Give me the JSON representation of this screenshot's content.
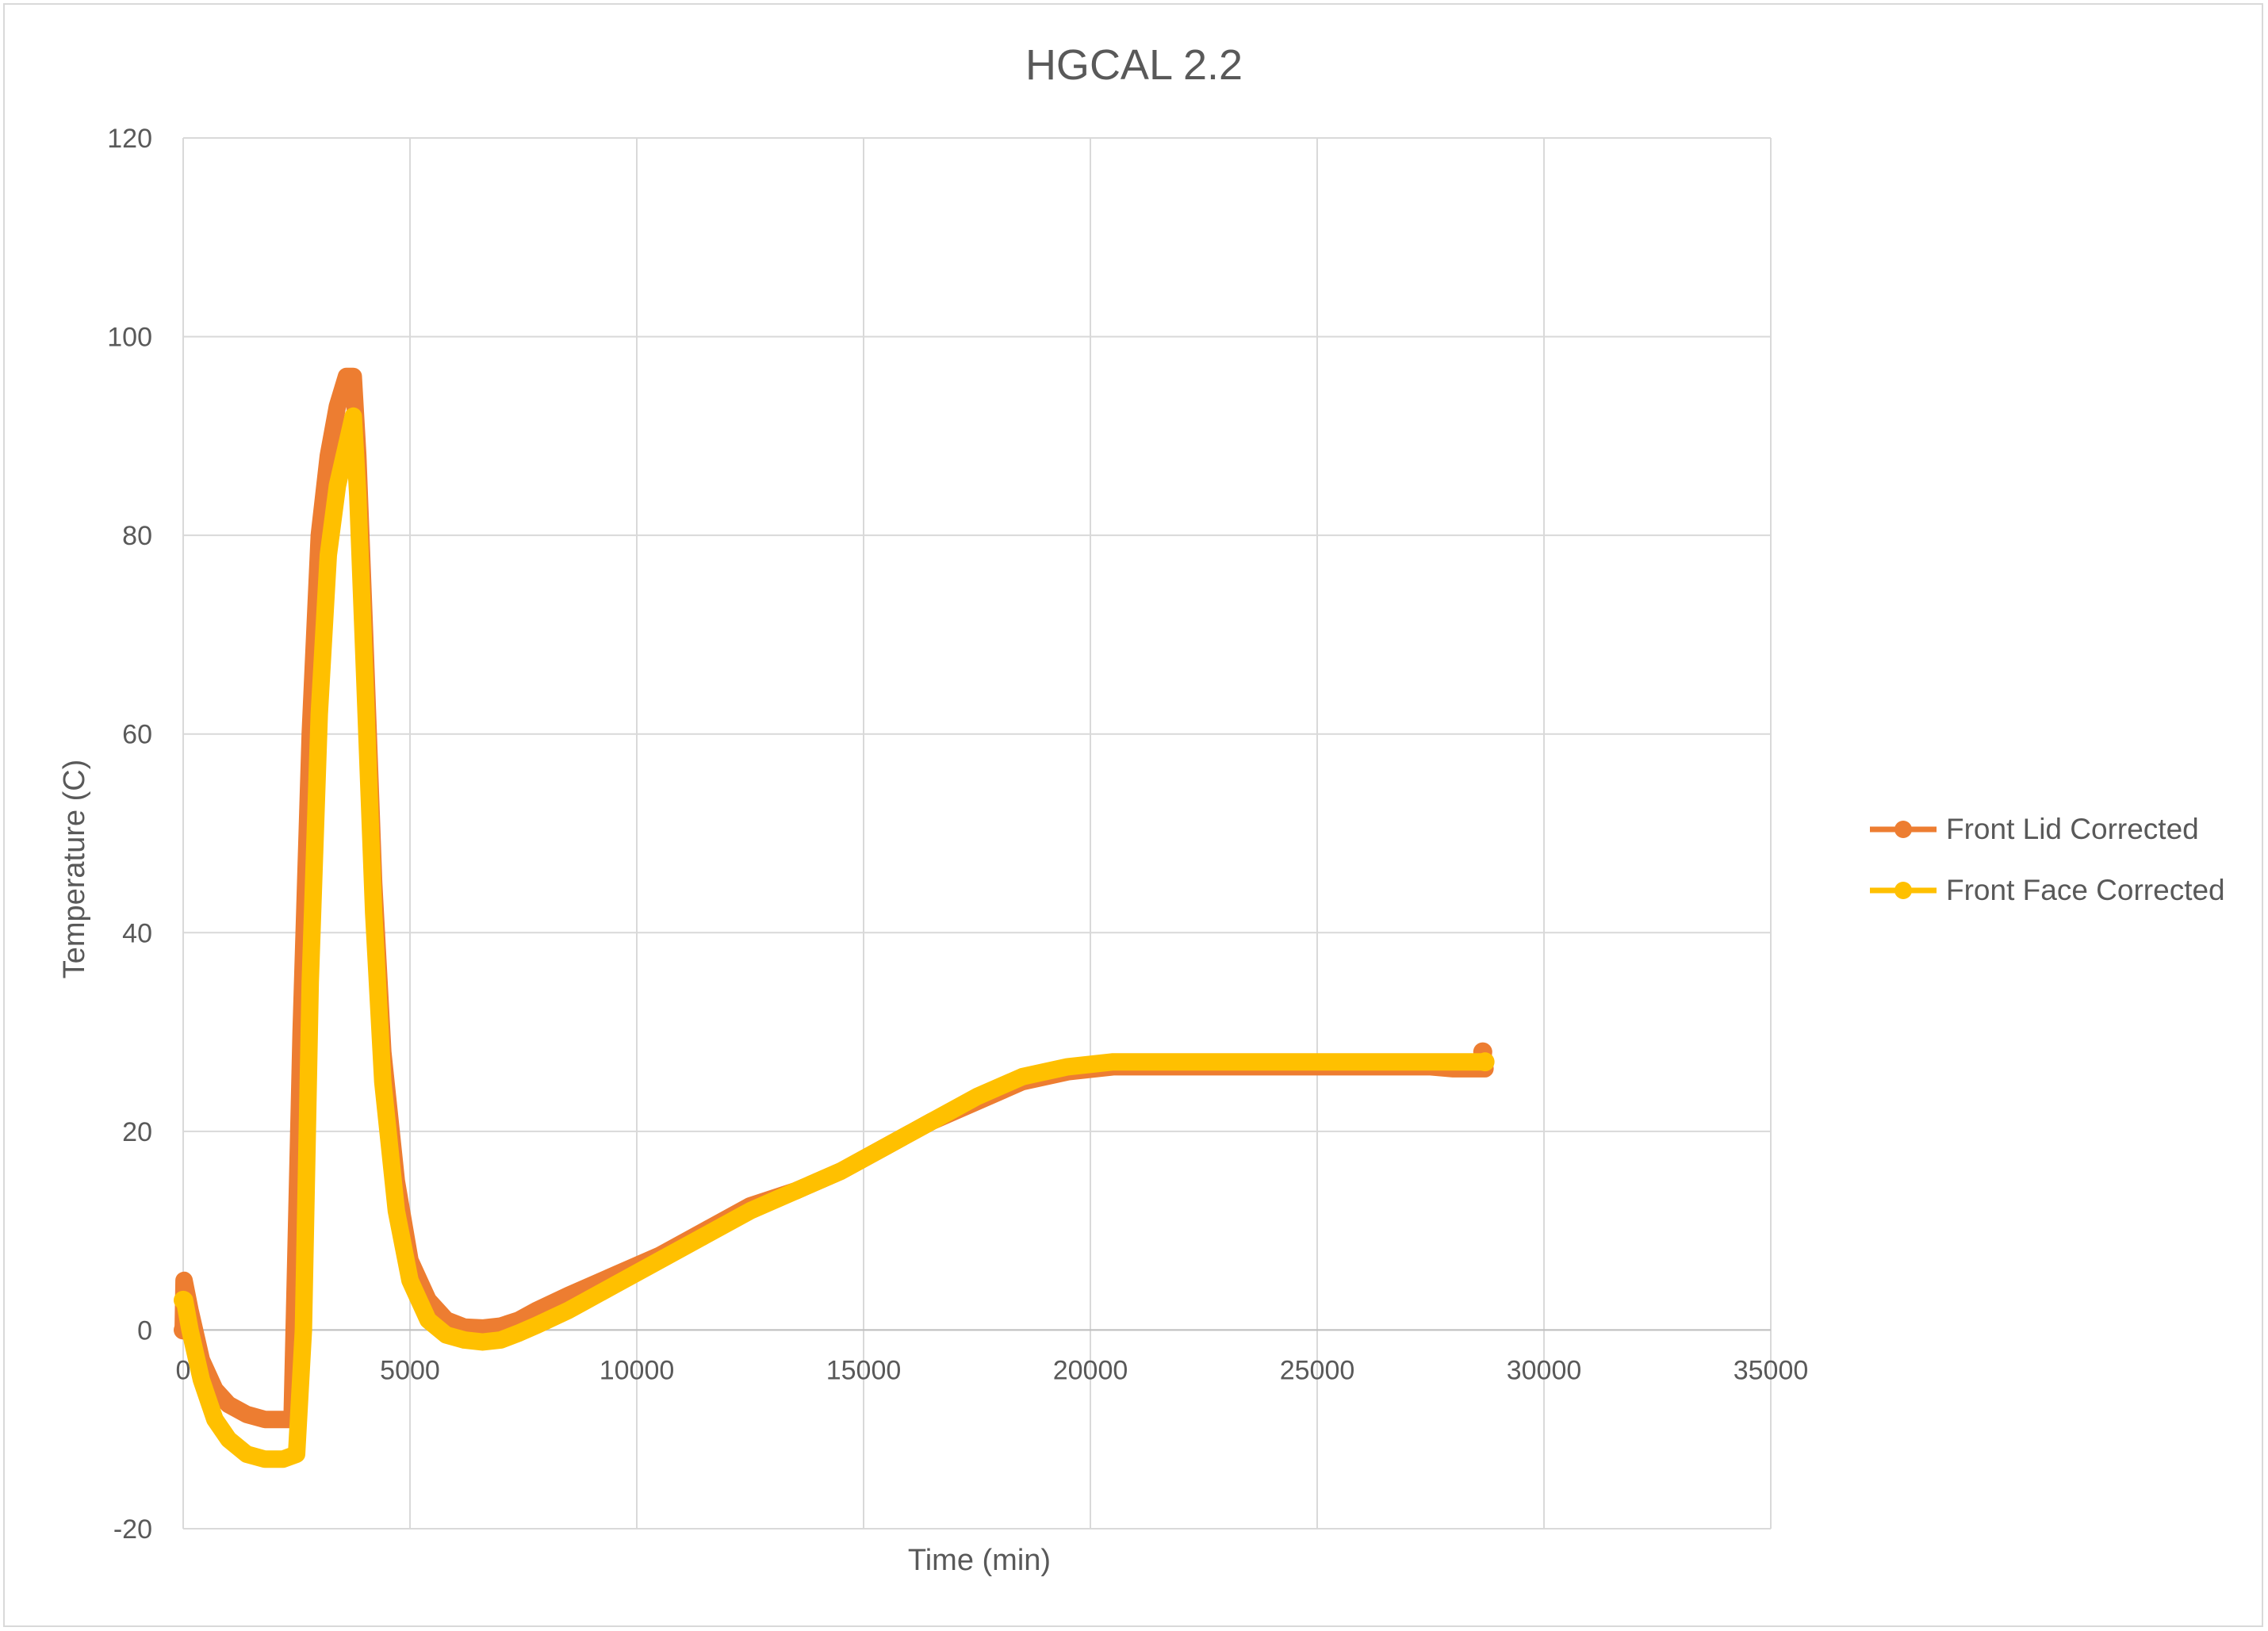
{
  "chart_data": {
    "type": "line",
    "title": "HGCAL 2.2",
    "xlabel": "Time (min)",
    "ylabel": "Temperature (C)",
    "xlim": [
      0,
      35000
    ],
    "ylim": [
      -20,
      120
    ],
    "x_ticks": [
      0,
      5000,
      10000,
      15000,
      20000,
      25000,
      30000,
      35000
    ],
    "y_ticks": [
      -20,
      0,
      20,
      40,
      60,
      80,
      100,
      120
    ],
    "grid": true,
    "legend_position": "right",
    "series": [
      {
        "name": "Front Lid Corrected",
        "color": "#ed7d31",
        "x": [
          0,
          20,
          150,
          400,
          700,
          1000,
          1400,
          1800,
          2200,
          2400,
          2600,
          2800,
          3000,
          3200,
          3400,
          3600,
          3750,
          3850,
          4000,
          4200,
          4400,
          4700,
          5000,
          5400,
          5800,
          6200,
          6600,
          7000,
          7400,
          7800,
          8500,
          9500,
          10500,
          11500,
          12500,
          13500,
          14500,
          15500,
          16500,
          17500,
          18500,
          19500,
          20500,
          21500,
          22500,
          23500,
          24500,
          25500,
          26500,
          27500,
          28000,
          28500,
          28700,
          28650
        ],
        "values": [
          0,
          5,
          2,
          -3,
          -6,
          -7.5,
          -8.5,
          -9,
          -9,
          -9,
          30,
          60,
          80,
          88,
          93,
          96,
          96,
          88,
          70,
          45,
          28,
          15,
          7,
          3,
          1,
          0.3,
          0.2,
          0.4,
          1,
          2,
          3.5,
          5.5,
          7.5,
          10,
          12.5,
          14,
          16,
          18.5,
          21,
          23,
          25,
          26,
          26.5,
          26.5,
          26.5,
          26.5,
          26.5,
          26.5,
          26.5,
          26.5,
          26.3,
          26.3,
          26.3,
          28
        ]
      },
      {
        "name": "Front Face Corrected",
        "color": "#ffc000",
        "x": [
          0,
          30,
          150,
          400,
          700,
          1000,
          1400,
          1800,
          2200,
          2500,
          2650,
          2800,
          3000,
          3200,
          3400,
          3600,
          3750,
          3850,
          4000,
          4200,
          4400,
          4700,
          5000,
          5400,
          5800,
          6200,
          6600,
          7000,
          7400,
          7800,
          8500,
          9500,
          10500,
          11500,
          12500,
          13500,
          14500,
          15500,
          16500,
          17500,
          18500,
          19500,
          20500,
          21500,
          22500,
          23500,
          24500,
          25500,
          26500,
          27500,
          28000,
          28500,
          28700
        ],
        "values": [
          3,
          3,
          0,
          -5,
          -9,
          -11,
          -12.5,
          -13,
          -13,
          -12.5,
          0,
          35,
          62,
          78,
          85,
          89,
          92,
          84,
          66,
          42,
          25,
          12,
          5,
          1,
          -0.5,
          -1,
          -1.2,
          -1,
          -0.3,
          0.5,
          2,
          4.5,
          7,
          9.5,
          12,
          14,
          16,
          18.5,
          21,
          23.5,
          25.5,
          26.5,
          27,
          27,
          27,
          27,
          27,
          27,
          27,
          27,
          27,
          27,
          27
        ]
      }
    ]
  }
}
